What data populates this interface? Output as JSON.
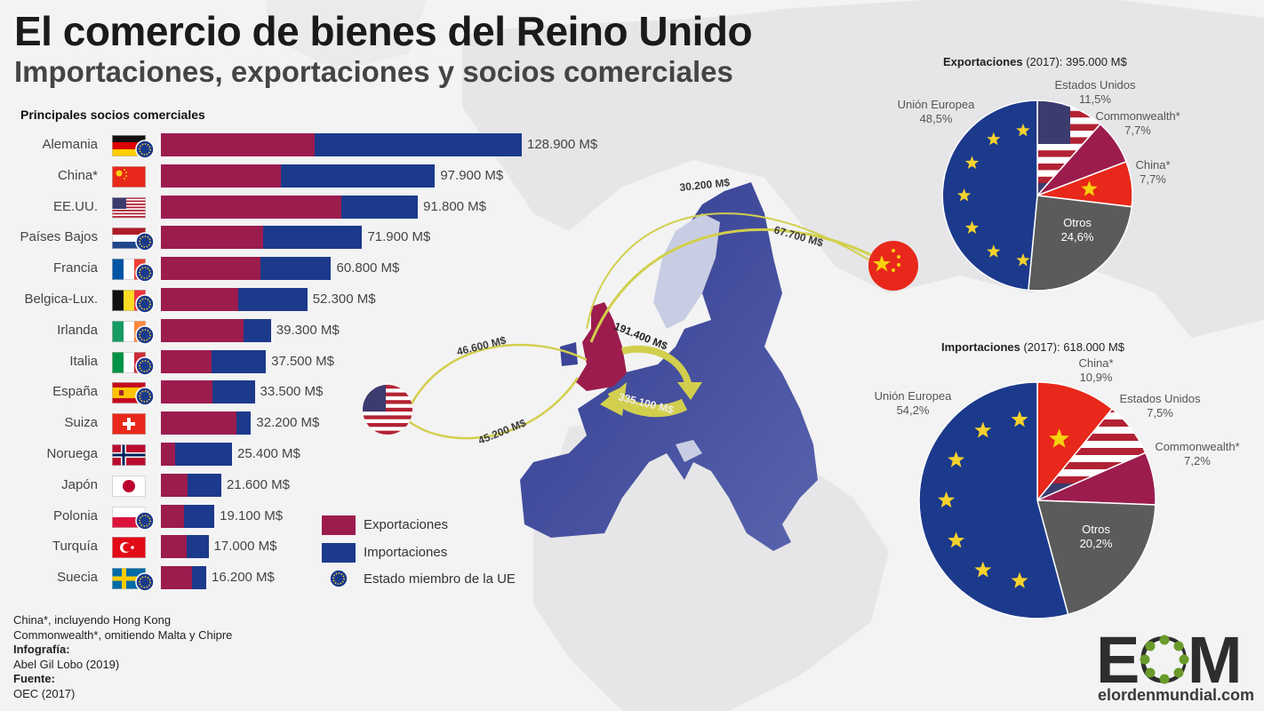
{
  "header": {
    "title": "El comercio de bienes del Reino Unido",
    "subtitle": "Importaciones, exportaciones y socios comerciales"
  },
  "colors": {
    "exports": "#9c1c4e",
    "imports": "#1c3a8c",
    "others": "#5b5b5b",
    "china": "#e8281a",
    "map_eu": "#3c4598",
    "arrow": "#d2cf4e"
  },
  "chart_data": [
    {
      "type": "bar",
      "title": "Principales socios comerciales",
      "unit": "M$",
      "categories": [
        "Alemania",
        "China*",
        "EE.UU.",
        "Países Bajos",
        "Francia",
        "Belgica-Lux.",
        "Irlanda",
        "Italia",
        "España",
        "Suiza",
        "Noruega",
        "Japón",
        "Polonia",
        "Turquía",
        "Suecia"
      ],
      "eu_member": [
        true,
        false,
        false,
        true,
        true,
        true,
        true,
        true,
        true,
        false,
        false,
        false,
        true,
        false,
        true
      ],
      "flag_icons": [
        "germany-flag",
        "china-flag",
        "usa-flag",
        "netherlands-flag",
        "france-flag",
        "belgium-flag",
        "ireland-flag",
        "italy-flag",
        "spain-flag",
        "switzerland-flag",
        "norway-flag",
        "japan-flag",
        "poland-flag",
        "turkey-flag",
        "sweden-flag"
      ],
      "totals": [
        128900,
        97900,
        91800,
        71900,
        60800,
        52300,
        39300,
        37500,
        33500,
        32200,
        25400,
        21600,
        19100,
        17000,
        16200
      ],
      "total_labels": [
        "128.900 M$",
        "97.900 M$",
        "91.800 M$",
        "71.900 M$",
        "60.800 M$",
        "52.300 M$",
        "39.300 M$",
        "37.500 M$",
        "33.500 M$",
        "32.200 M$",
        "25.400 M$",
        "21.600 M$",
        "19.100 M$",
        "17.000 M$",
        "16.200 M$"
      ],
      "series": [
        {
          "name": "Exportaciones",
          "values": [
            55000,
            43000,
            64300,
            36500,
            35600,
            27500,
            29500,
            18200,
            18500,
            27000,
            5100,
            9600,
            8200,
            9200,
            11000
          ]
        },
        {
          "name": "Importaciones",
          "values": [
            73900,
            54900,
            27500,
            35400,
            25200,
            24800,
            9800,
            19300,
            15000,
            5200,
            20300,
            12000,
            10900,
            7800,
            5200
          ]
        }
      ],
      "legend": [
        "Exportaciones",
        "Importaciones",
        "Estado miembro de la UE"
      ]
    },
    {
      "type": "pie",
      "title_bold": "Exportaciones",
      "title_rest": " (2017): 395.000 M$",
      "slices": [
        {
          "label": "Estados Unidos",
          "value": 11.5,
          "value_label": "11,5%",
          "fill": "usa-flag"
        },
        {
          "label": "Commonwealth*",
          "value": 7.7,
          "value_label": "7,7%",
          "fill": "#9c1c4e"
        },
        {
          "label": "China*",
          "value": 7.7,
          "value_label": "7,7%",
          "fill": "china-flag"
        },
        {
          "label": "Otros",
          "value": 24.6,
          "value_label": "24,6%",
          "fill": "#5b5b5b"
        },
        {
          "label": "Unión Europea",
          "value": 48.5,
          "value_label": "48,5%",
          "fill": "eu-flag"
        }
      ]
    },
    {
      "type": "pie",
      "title_bold": "Importaciones",
      "title_rest": " (2017): 618.000 M$",
      "slices": [
        {
          "label": "China*",
          "value": 10.9,
          "value_label": "10,9%",
          "fill": "china-flag"
        },
        {
          "label": "Estados Unidos",
          "value": 7.5,
          "value_label": "7,5%",
          "fill": "usa-flag"
        },
        {
          "label": "Commonwealth*",
          "value": 7.2,
          "value_label": "7,2%",
          "fill": "#9c1c4e"
        },
        {
          "label": "Otros",
          "value": 20.2,
          "value_label": "20,2%",
          "fill": "#5b5b5b"
        },
        {
          "label": "Unión Europea",
          "value": 54.2,
          "value_label": "54,2%",
          "fill": "eu-flag"
        }
      ]
    }
  ],
  "map": {
    "flows": [
      {
        "label": "30.200 M$",
        "from": "Reino Unido",
        "to": "China"
      },
      {
        "label": "67.700 M$",
        "from": "China",
        "to": "Reino Unido"
      },
      {
        "label": "46.600 M$",
        "from": "Reino Unido",
        "to": "EE.UU."
      },
      {
        "label": "45.200 M$",
        "from": "EE.UU.",
        "to": "Reino Unido"
      },
      {
        "label": "191.400 M$",
        "from": "Reino Unido",
        "to": "Unión Europea"
      },
      {
        "label": "335.100 M$",
        "from": "Unión Europea",
        "to": "Reino Unido"
      }
    ]
  },
  "notes": {
    "line1": "China*, incluyendo Hong Kong",
    "line2": "Commonwealth*, omitiendo Malta y Chipre",
    "infografia_label": "Infografía:",
    "infografia_value": "Abel Gil Lobo (2019)",
    "fuente_label": "Fuente:",
    "fuente_value": "OEC (2017)"
  },
  "logo": {
    "letters": "EOM",
    "url": "elordenmundial.com"
  }
}
